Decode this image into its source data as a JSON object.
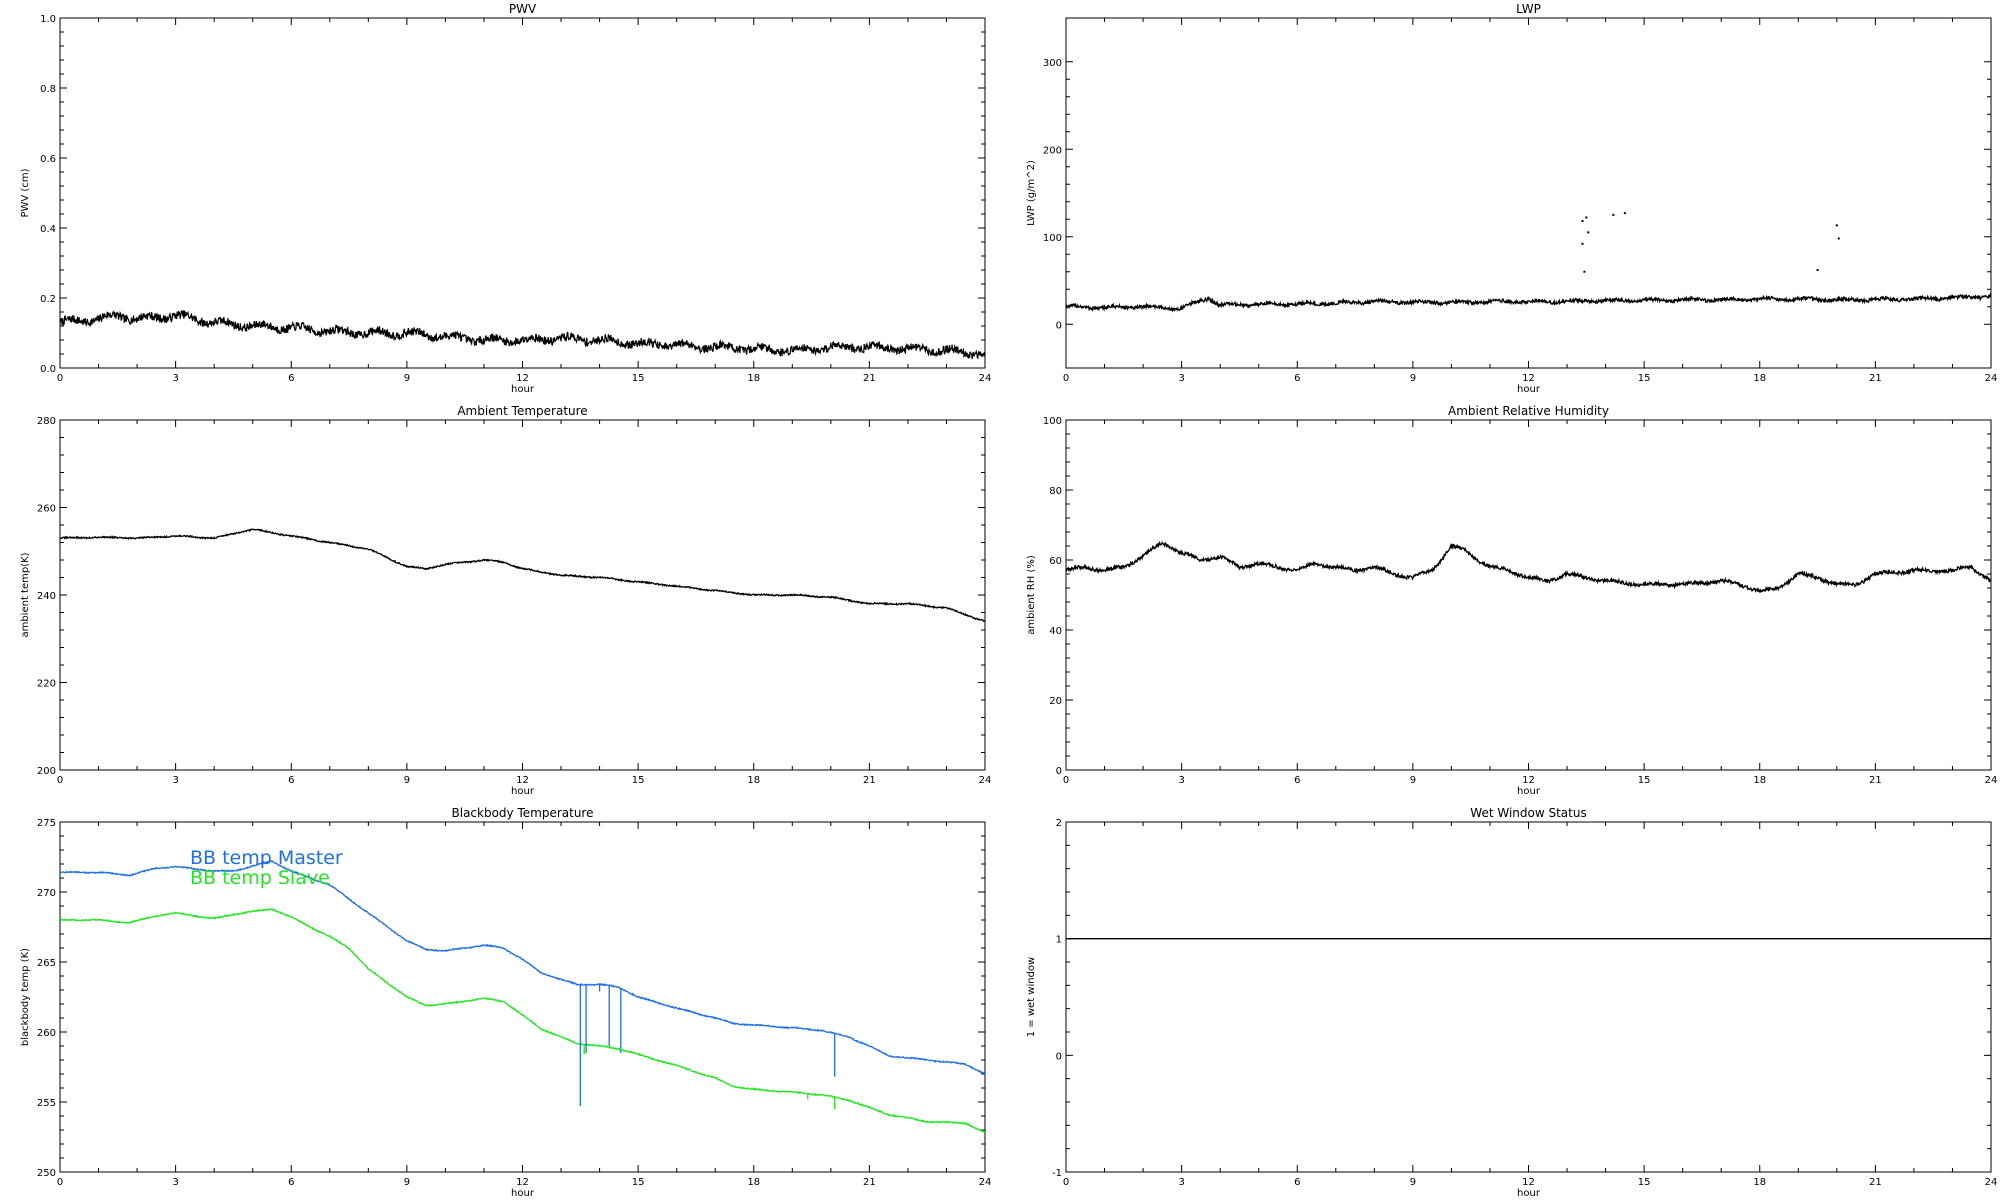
{
  "chart_data": [
    {
      "type": "line",
      "title": "PWV",
      "xlabel": "hour",
      "ylabel": "PWV (cm)",
      "xlim": [
        0,
        24
      ],
      "ylim": [
        0,
        1.0
      ],
      "x_ticks": [
        0,
        3,
        6,
        9,
        12,
        15,
        18,
        21,
        24
      ],
      "y_ticks": [
        0.0,
        0.2,
        0.4,
        0.6,
        0.8,
        1.0
      ],
      "y_tick_labels": [
        "0.0",
        "0.2",
        "0.4",
        "0.6",
        "0.8",
        "1.0"
      ],
      "noise": 0.012,
      "series": [
        {
          "color": "#000000",
          "x": [
            0,
            1,
            1.5,
            2,
            3,
            4,
            5,
            6,
            7,
            8,
            9,
            10,
            11,
            12,
            13,
            14,
            15,
            16,
            17,
            18,
            19,
            20,
            21,
            22,
            23,
            24
          ],
          "y": [
            0.13,
            0.14,
            0.15,
            0.14,
            0.15,
            0.13,
            0.12,
            0.115,
            0.105,
            0.1,
            0.1,
            0.09,
            0.08,
            0.08,
            0.085,
            0.08,
            0.07,
            0.065,
            0.06,
            0.055,
            0.05,
            0.06,
            0.06,
            0.055,
            0.05,
            0.04
          ]
        }
      ]
    },
    {
      "type": "line",
      "title": "LWP",
      "xlabel": "hour",
      "ylabel": "LWP (g/m^2)",
      "xlim": [
        0,
        24
      ],
      "ylim": [
        -50,
        350
      ],
      "x_ticks": [
        0,
        3,
        6,
        9,
        12,
        15,
        18,
        21,
        24
      ],
      "y_ticks": [
        0,
        100,
        200,
        300
      ],
      "y_tick_labels": [
        "0",
        "100",
        "200",
        "300"
      ],
      "noise": 2,
      "series": [
        {
          "color": "#000000",
          "x": [
            0,
            1,
            2,
            3,
            3.5,
            3.7,
            4,
            5,
            6,
            7,
            8,
            9,
            10,
            11,
            12,
            13,
            14,
            15,
            16,
            17,
            18,
            19,
            20,
            21,
            22,
            23,
            24
          ],
          "y": [
            20,
            19,
            20,
            18,
            27,
            30,
            22,
            23,
            23,
            24,
            26,
            25,
            25,
            26,
            26,
            26,
            27,
            27,
            28,
            28,
            29,
            29,
            28,
            28,
            29,
            30,
            32
          ]
        }
      ],
      "scatter": {
        "x": [
          13.4,
          13.5,
          13.55,
          13.4,
          13.45,
          14.2,
          14.5,
          19.5,
          20.0,
          20.05
        ],
        "y": [
          118,
          122,
          105,
          92,
          60,
          125,
          127,
          62,
          113,
          98
        ]
      }
    },
    {
      "type": "line",
      "title": "Ambient Temperature",
      "xlabel": "hour",
      "ylabel": "ambient temp(K)",
      "xlim": [
        0,
        24
      ],
      "ylim": [
        200,
        280
      ],
      "x_ticks": [
        0,
        3,
        6,
        9,
        12,
        15,
        18,
        21,
        24
      ],
      "y_ticks": [
        200,
        220,
        240,
        260,
        280
      ],
      "y_tick_labels": [
        "200",
        "220",
        "240",
        "260",
        "280"
      ],
      "noise": 0.15,
      "series": [
        {
          "color": "#000000",
          "x": [
            0,
            1,
            2,
            3,
            4,
            5,
            6,
            7,
            8,
            9,
            9.5,
            10,
            11,
            11.5,
            12,
            13,
            14,
            15,
            16,
            17,
            18,
            19,
            20,
            21,
            22,
            23,
            23.5,
            24
          ],
          "y": [
            253,
            253.2,
            253,
            253.5,
            253,
            255,
            253.5,
            252,
            250.5,
            246.5,
            246,
            247,
            248,
            247.5,
            246,
            244.5,
            244,
            243,
            242,
            241,
            240,
            240,
            239.5,
            238,
            238,
            237,
            235.5,
            234
          ]
        }
      ]
    },
    {
      "type": "line",
      "title": "Ambient Relative Humidity",
      "xlabel": "hour",
      "ylabel": "ambient RH (%)",
      "xlim": [
        0,
        24
      ],
      "ylim": [
        0,
        100
      ],
      "x_ticks": [
        0,
        3,
        6,
        9,
        12,
        15,
        18,
        21,
        24
      ],
      "y_ticks": [
        0,
        20,
        40,
        60,
        80,
        100
      ],
      "y_tick_labels": [
        "0",
        "20",
        "40",
        "60",
        "80",
        "100"
      ],
      "noise": 0.5,
      "series": [
        {
          "color": "#000000",
          "x": [
            0,
            0.5,
            1,
            1.5,
            2,
            2.5,
            3,
            3.5,
            4,
            4.5,
            5,
            5.5,
            6,
            6.5,
            7,
            7.5,
            8,
            8.5,
            9,
            9.5,
            10,
            10.3,
            10.7,
            11,
            11.5,
            12,
            12.5,
            13,
            14,
            15,
            16,
            17,
            17.5,
            18,
            18.5,
            19,
            19.5,
            20,
            20.5,
            21,
            22,
            23,
            23.5,
            24
          ],
          "y": [
            57,
            58,
            57,
            58,
            61,
            65,
            62,
            60,
            61,
            58,
            59,
            58,
            57,
            59,
            58,
            57,
            58,
            56,
            55,
            57,
            64,
            63,
            60,
            58,
            57,
            55,
            54,
            56,
            54,
            53,
            53,
            54,
            53,
            51,
            52,
            56,
            55,
            53,
            53,
            56,
            57,
            57,
            58,
            54
          ]
        }
      ]
    },
    {
      "type": "line",
      "title": "Blackbody Temperature",
      "xlabel": "hour",
      "ylabel": "blackbody temp (K)",
      "xlim": [
        0,
        24
      ],
      "ylim": [
        250,
        275
      ],
      "x_ticks": [
        0,
        3,
        6,
        9,
        12,
        15,
        18,
        21,
        24
      ],
      "y_ticks": [
        250,
        255,
        260,
        265,
        270,
        275
      ],
      "y_tick_labels": [
        "250",
        "255",
        "260",
        "265",
        "270",
        "275"
      ],
      "noise": 0.04,
      "legend": [
        "BB temp Master",
        "BB temp Slave"
      ],
      "series": [
        {
          "name": "BB temp Master",
          "color": "#1f6fe8",
          "x": [
            0,
            1,
            1.8,
            2.5,
            3,
            4,
            4.5,
            5.5,
            6,
            7,
            7.5,
            8,
            9,
            9.5,
            10,
            11,
            11.5,
            12,
            12.5,
            13.4,
            14,
            14.5,
            15,
            16,
            17,
            17.5,
            18,
            19,
            19.8,
            20.5,
            21,
            21.5,
            22.5,
            23.5,
            24
          ],
          "y": [
            271.4,
            271.4,
            271.2,
            271.7,
            271.8,
            271.5,
            271.5,
            272.2,
            271.5,
            270.5,
            269.5,
            268.5,
            266.5,
            265.9,
            265.8,
            266.2,
            266,
            265.2,
            264.2,
            263.4,
            263.4,
            263.2,
            262.5,
            261.7,
            261,
            260.6,
            260.5,
            260.3,
            260.1,
            259.6,
            259,
            258.3,
            258,
            257.7,
            257.0
          ]
        },
        {
          "name": "BB temp Slave",
          "color": "#22e622",
          "x": [
            0,
            1,
            1.8,
            2.5,
            3,
            4,
            4.5,
            5.5,
            6,
            7,
            7.5,
            8,
            9,
            9.5,
            10,
            11,
            11.5,
            12,
            12.5,
            13.4,
            14,
            14.5,
            15,
            16,
            17,
            17.5,
            18,
            19,
            19.8,
            20.5,
            21,
            21.5,
            22.5,
            23.5,
            24
          ],
          "y": [
            268,
            268,
            267.8,
            268.3,
            268.5,
            268.1,
            268.4,
            268.8,
            268.2,
            266.8,
            266,
            264.5,
            262.5,
            261.9,
            262,
            262.4,
            262.2,
            261.2,
            260.2,
            259.2,
            259.0,
            258.8,
            258.4,
            257.6,
            256.7,
            256.1,
            255.9,
            255.7,
            255.5,
            255.1,
            254.6,
            254.1,
            253.6,
            253.5,
            252.8
          ]
        }
      ],
      "spikes": [
        {
          "series": 0,
          "x": [
            13.5,
            13.65,
            14.0,
            14.25,
            14.55,
            20.1
          ],
          "y": [
            254.7,
            258.5,
            262.9,
            259.0,
            258.5,
            256.8
          ]
        },
        {
          "series": 1,
          "x": [
            13.6,
            14.55,
            19.4,
            20.1
          ],
          "y": [
            258.4,
            258.6,
            255.2,
            254.5
          ]
        }
      ]
    },
    {
      "type": "line",
      "title": "Wet Window Status",
      "xlabel": "hour",
      "ylabel": "1 = wet window",
      "xlim": [
        0,
        24
      ],
      "ylim": [
        -1,
        2
      ],
      "x_ticks": [
        0,
        3,
        6,
        9,
        12,
        15,
        18,
        21,
        24
      ],
      "y_ticks": [
        -1,
        0,
        1,
        2
      ],
      "y_tick_labels": [
        "-1",
        "0",
        "1",
        "2"
      ],
      "noise": 0,
      "series": [
        {
          "color": "#000000",
          "x": [
            0,
            24
          ],
          "y": [
            1,
            1
          ]
        }
      ]
    }
  ]
}
